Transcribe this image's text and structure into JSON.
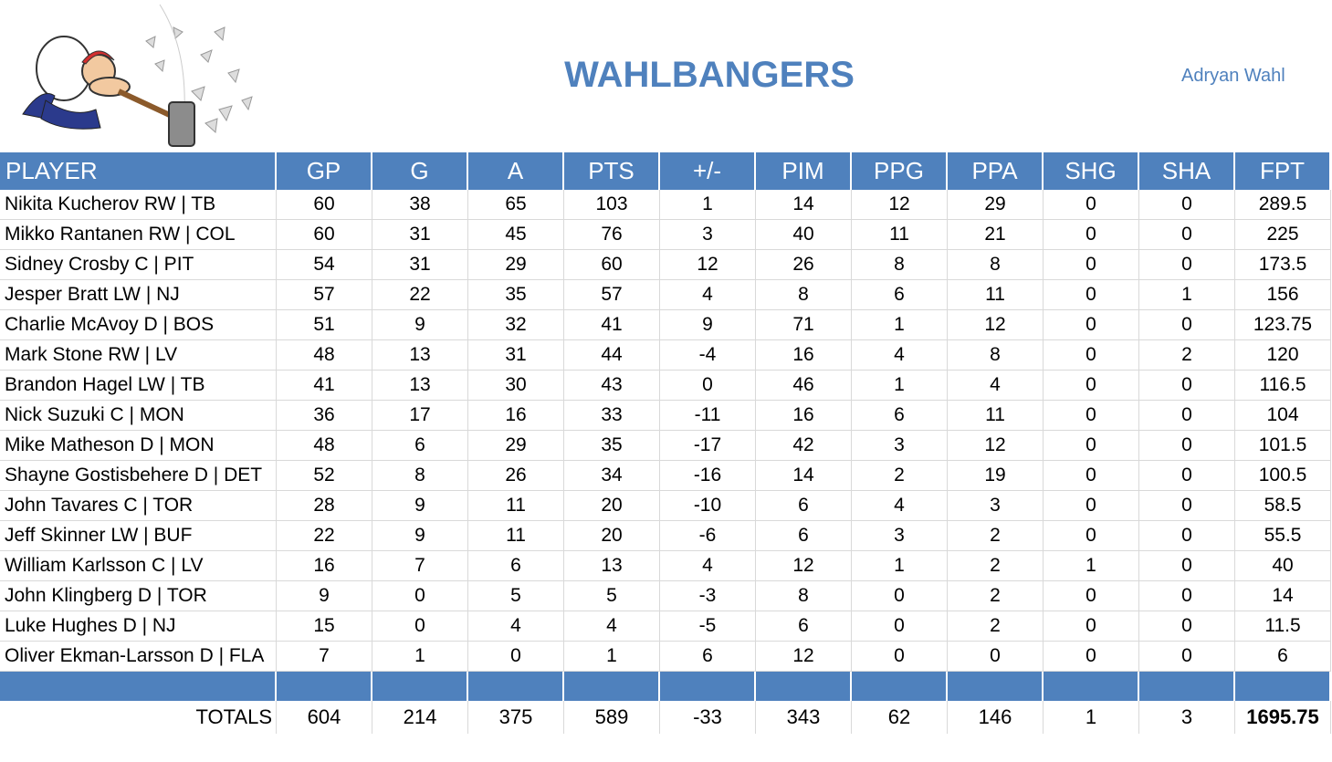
{
  "header": {
    "title": "WAHLBANGERS",
    "owner": "Adryan Wahl"
  },
  "table": {
    "columns": [
      "PLAYER",
      "GP",
      "G",
      "A",
      "PTS",
      "+/-",
      "PIM",
      "PPG",
      "PPA",
      "SHG",
      "SHA",
      "FPT"
    ],
    "rows": [
      [
        "Nikita Kucherov RW | TB",
        60,
        38,
        65,
        103,
        1,
        14,
        12,
        29,
        0,
        0,
        289.5
      ],
      [
        "Mikko Rantanen RW | COL",
        60,
        31,
        45,
        76,
        3,
        40,
        11,
        21,
        0,
        0,
        225
      ],
      [
        "Sidney Crosby C | PIT",
        54,
        31,
        29,
        60,
        12,
        26,
        8,
        8,
        0,
        0,
        173.5
      ],
      [
        "Jesper Bratt LW | NJ",
        57,
        22,
        35,
        57,
        4,
        8,
        6,
        11,
        0,
        1,
        156
      ],
      [
        "Charlie McAvoy D | BOS",
        51,
        9,
        32,
        41,
        9,
        71,
        1,
        12,
        0,
        0,
        123.75
      ],
      [
        "Mark Stone RW | LV",
        48,
        13,
        31,
        44,
        -4,
        16,
        4,
        8,
        0,
        2,
        120
      ],
      [
        "Brandon Hagel LW | TB",
        41,
        13,
        30,
        43,
        0,
        46,
        1,
        4,
        0,
        0,
        116.5
      ],
      [
        "Nick Suzuki C | MON",
        36,
        17,
        16,
        33,
        -11,
        16,
        6,
        11,
        0,
        0,
        104
      ],
      [
        "Mike Matheson D | MON",
        48,
        6,
        29,
        35,
        -17,
        42,
        3,
        12,
        0,
        0,
        101.5
      ],
      [
        "Shayne Gostisbehere D | DET",
        52,
        8,
        26,
        34,
        -16,
        14,
        2,
        19,
        0,
        0,
        100.5
      ],
      [
        "John Tavares C | TOR",
        28,
        9,
        11,
        20,
        -10,
        6,
        4,
        3,
        0,
        0,
        58.5
      ],
      [
        "Jeff Skinner LW | BUF",
        22,
        9,
        11,
        20,
        -6,
        6,
        3,
        2,
        0,
        0,
        55.5
      ],
      [
        "William Karlsson C | LV",
        16,
        7,
        6,
        13,
        4,
        12,
        1,
        2,
        1,
        0,
        40
      ],
      [
        "John Klingberg D | TOR",
        9,
        0,
        5,
        5,
        -3,
        8,
        0,
        2,
        0,
        0,
        14
      ],
      [
        "Luke Hughes D | NJ",
        15,
        0,
        4,
        4,
        -5,
        6,
        0,
        2,
        0,
        0,
        11.5
      ],
      [
        "Oliver Ekman-Larsson D | FLA",
        7,
        1,
        0,
        1,
        6,
        12,
        0,
        0,
        0,
        0,
        6
      ]
    ],
    "totals": {
      "label": "TOTALS",
      "values": [
        604,
        214,
        375,
        589,
        -33,
        343,
        62,
        146,
        1,
        3,
        1695.75
      ]
    }
  }
}
